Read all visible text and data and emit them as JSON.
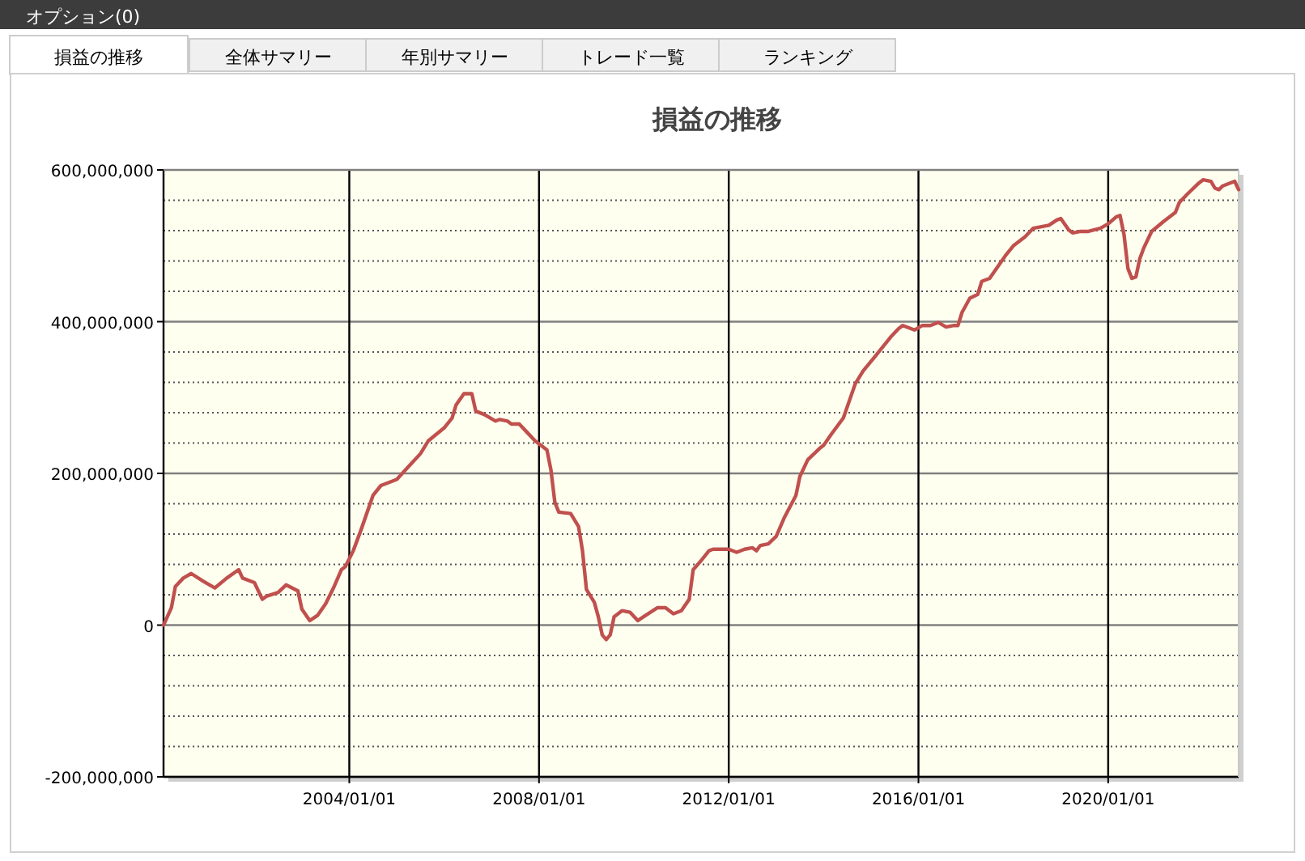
{
  "chart_data": {
    "type": "line",
    "title": "損益の推移",
    "annotations": [
      "オプション(0)",
      "損益の推移",
      "全体サマリー",
      "年別サマリー",
      "トレード一覧",
      "ランキング"
    ],
    "x": [
      "2000-02",
      "2000-04",
      "2000-05",
      "2000-07",
      "2000-09",
      "2000-12",
      "2001-03",
      "2001-06",
      "2001-09",
      "2001-10",
      "2002-01",
      "2002-03",
      "2002-04",
      "2002-07",
      "2002-09",
      "2002-12",
      "2003-01",
      "2003-03",
      "2003-05",
      "2003-07",
      "2003-09",
      "2003-11",
      "2003-12",
      "2004-02",
      "2004-04",
      "2004-06",
      "2004-07",
      "2004-09",
      "2004-11",
      "2005-01",
      "2005-04",
      "2005-07",
      "2005-09",
      "2006-01",
      "2006-03",
      "2006-04",
      "2006-06",
      "2006-08",
      "2006-09",
      "2006-11",
      "2006-12",
      "2007-02",
      "2007-03",
      "2007-05",
      "2007-06",
      "2007-08",
      "2007-10",
      "2007-12",
      "2008-01",
      "2008-03",
      "2008-04",
      "2008-05",
      "2008-06",
      "2008-09",
      "2008-11",
      "2008-12",
      "2009-01",
      "2009-03",
      "2009-04",
      "2009-05",
      "2009-06",
      "2009-07",
      "2009-08",
      "2009-10",
      "2009-12",
      "2010-02",
      "2010-04",
      "2010-07",
      "2010-09",
      "2010-11",
      "2011-01",
      "2011-03",
      "2011-04",
      "2011-06",
      "2011-08",
      "2011-09",
      "2012-01",
      "2012-03",
      "2012-05",
      "2012-07",
      "2012-08",
      "2012-09",
      "2012-11",
      "2013-01",
      "2013-03",
      "2013-06",
      "2013-07",
      "2013-09",
      "2013-12",
      "2014-01",
      "2014-03",
      "2014-06",
      "2014-09",
      "2014-11",
      "2015-02",
      "2015-06",
      "2015-08",
      "2015-09",
      "2015-12",
      "2016-02",
      "2016-04",
      "2016-06",
      "2016-08",
      "2016-10",
      "2016-11",
      "2016-12",
      "2017-02",
      "2017-04",
      "2017-05",
      "2017-07",
      "2017-09",
      "2017-11",
      "2018-01",
      "2018-04",
      "2018-06",
      "2018-10",
      "2018-12",
      "2019-01",
      "2019-03",
      "2019-04",
      "2019-06",
      "2019-08",
      "2019-11",
      "2020-01",
      "2020-03",
      "2020-04",
      "2020-05",
      "2020-06",
      "2020-07",
      "2020-08",
      "2020-09",
      "2020-10",
      "2020-12",
      "2021-03",
      "2021-06",
      "2021-07",
      "2021-09",
      "2021-12",
      "2022-01",
      "2022-03",
      "2022-04",
      "2022-05",
      "2022-06",
      "2022-09",
      "2022-10"
    ],
    "series": [
      {
        "color": "#c0504d",
        "values": [
          0,
          23000000,
          51000000,
          62000000,
          68000000,
          58000000,
          49000000,
          62000000,
          73000000,
          62000000,
          56000000,
          34000000,
          38000000,
          43000000,
          53000000,
          45000000,
          21000000,
          6000000,
          13000000,
          28000000,
          49000000,
          73000000,
          77000000,
          98000000,
          126000000,
          156000000,
          171000000,
          184000000,
          188000000,
          192000000,
          209000000,
          226000000,
          243000000,
          260000000,
          273000000,
          290000000,
          305000000,
          305000000,
          282000000,
          278000000,
          275000000,
          269000000,
          271000000,
          269000000,
          265000000,
          265000000,
          254000000,
          243000000,
          239000000,
          231000000,
          205000000,
          162000000,
          149000000,
          147000000,
          130000000,
          98000000,
          47000000,
          30000000,
          11000000,
          -13000000,
          -19000000,
          -13000000,
          11000000,
          19000000,
          17000000,
          6000000,
          13000000,
          23000000,
          23000000,
          15000000,
          19000000,
          34000000,
          73000000,
          85000000,
          98000000,
          100000000,
          100000000,
          96000000,
          100000000,
          102000000,
          98000000,
          105000000,
          107000000,
          117000000,
          141000000,
          171000000,
          196000000,
          218000000,
          233000000,
          237000000,
          252000000,
          273000000,
          318000000,
          335000000,
          354000000,
          380000000,
          391000000,
          395000000,
          389000000,
          395000000,
          395000000,
          399000000,
          393000000,
          395000000,
          395000000,
          412000000,
          431000000,
          436000000,
          453000000,
          457000000,
          472000000,
          487000000,
          500000000,
          512000000,
          523000000,
          527000000,
          534000000,
          536000000,
          521000000,
          517000000,
          519000000,
          519000000,
          523000000,
          529000000,
          538000000,
          540000000,
          515000000,
          470000000,
          457000000,
          459000000,
          483000000,
          497000000,
          519000000,
          532000000,
          544000000,
          557000000,
          568000000,
          583000000,
          587000000,
          585000000,
          576000000,
          574000000,
          579000000,
          585000000,
          574000000
        ]
      }
    ],
    "xlim": [
      "2000-02",
      "2022-10"
    ],
    "xticks": [
      {
        "value": "2004-01-01",
        "label": "2004/01/01"
      },
      {
        "value": "2008-01-01",
        "label": "2008/01/01"
      },
      {
        "value": "2012-01-01",
        "label": "2012/01/01"
      },
      {
        "value": "2016-01-01",
        "label": "2016/01/01"
      },
      {
        "value": "2020-01-01",
        "label": "2020/01/01"
      }
    ],
    "ylim": [
      -200000000,
      600000000
    ],
    "yticks": [
      {
        "value": -200000000,
        "label": "-200,000,000"
      },
      {
        "value": -160000000,
        "label": null
      },
      {
        "value": -120000000,
        "label": null
      },
      {
        "value": -80000000,
        "label": null
      },
      {
        "value": -40000000,
        "label": null
      },
      {
        "value": 0,
        "label": "0"
      },
      {
        "value": 40000000,
        "label": null
      },
      {
        "value": 80000000,
        "label": null
      },
      {
        "value": 120000000,
        "label": null
      },
      {
        "value": 160000000,
        "label": null
      },
      {
        "value": 200000000,
        "label": "200,000,000"
      },
      {
        "value": 240000000,
        "label": null
      },
      {
        "value": 280000000,
        "label": null
      },
      {
        "value": 320000000,
        "label": null
      },
      {
        "value": 360000000,
        "label": null
      },
      {
        "value": 400000000,
        "label": "400,000,000"
      },
      {
        "value": 440000000,
        "label": null
      },
      {
        "value": 480000000,
        "label": null
      },
      {
        "value": 520000000,
        "label": null
      },
      {
        "value": 560000000,
        "label": null
      },
      {
        "value": 600000000,
        "label": "600,000,000"
      }
    ],
    "grid": true,
    "marker": "none",
    "line_style": "solid"
  }
}
